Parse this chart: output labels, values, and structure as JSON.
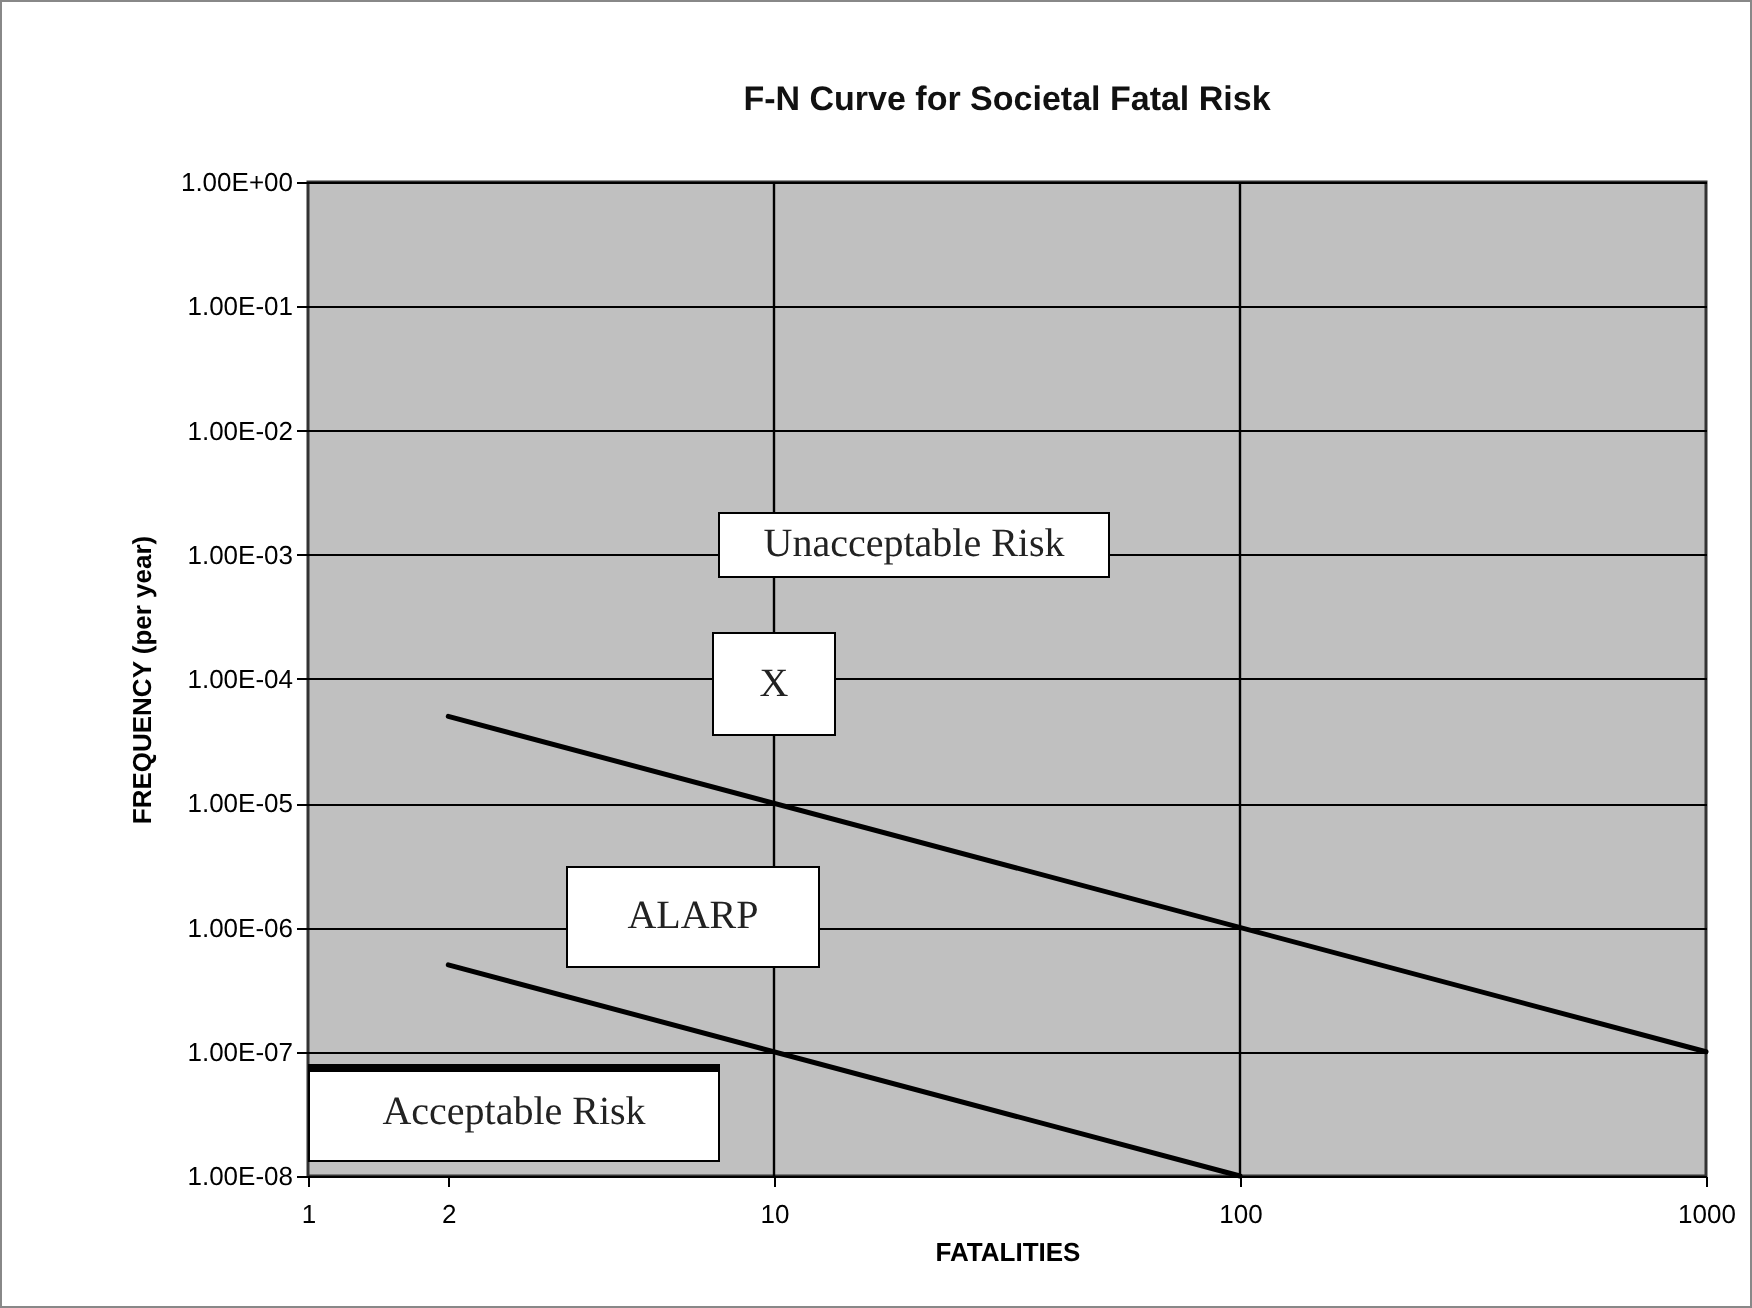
{
  "chart_data": {
    "type": "line",
    "title": "F-N Curve for Societal Fatal  Risk",
    "xlabel": "FATALITIES",
    "ylabel": "FREQUENCY (per year)",
    "series": [
      {
        "color": "#000000",
        "x": [
          2,
          1000
        ],
        "values": [
          5e-05,
          1e-07
        ]
      },
      {
        "color": "#000000",
        "x": [
          2,
          100
        ],
        "values": [
          5e-07,
          1e-08
        ]
      }
    ],
    "log": "xy",
    "xlim": [
      1,
      1000
    ],
    "xticks": [
      1,
      2,
      10,
      100,
      1000
    ],
    "ylim": [
      1e-08,
      1
    ],
    "yticks": [
      {
        "value": 1,
        "label": "1.00E+00"
      },
      {
        "value": 0.1,
        "label": "1.00E-01"
      },
      {
        "value": 0.01,
        "label": "1.00E-02"
      },
      {
        "value": 0.001,
        "label": "1.00E-03"
      },
      {
        "value": 0.0001,
        "label": "1.00E-04"
      },
      {
        "value": 1e-05,
        "label": "1.00E-05"
      },
      {
        "value": 1e-06,
        "label": "1.00E-06"
      },
      {
        "value": 1e-07,
        "label": "1.00E-07"
      },
      {
        "value": 1e-08,
        "label": "1.00E-08"
      }
    ],
    "grid": "y",
    "marker": "none",
    "line_style": "solid",
    "ref_lines": [
      {
        "axis": "x",
        "value": 10,
        "color": "#000000"
      },
      {
        "axis": "x",
        "value": 100,
        "color": "#000000"
      }
    ],
    "annotations": [
      "Unacceptable Risk",
      "X",
      "ALARP",
      "Acceptable Risk"
    ]
  }
}
